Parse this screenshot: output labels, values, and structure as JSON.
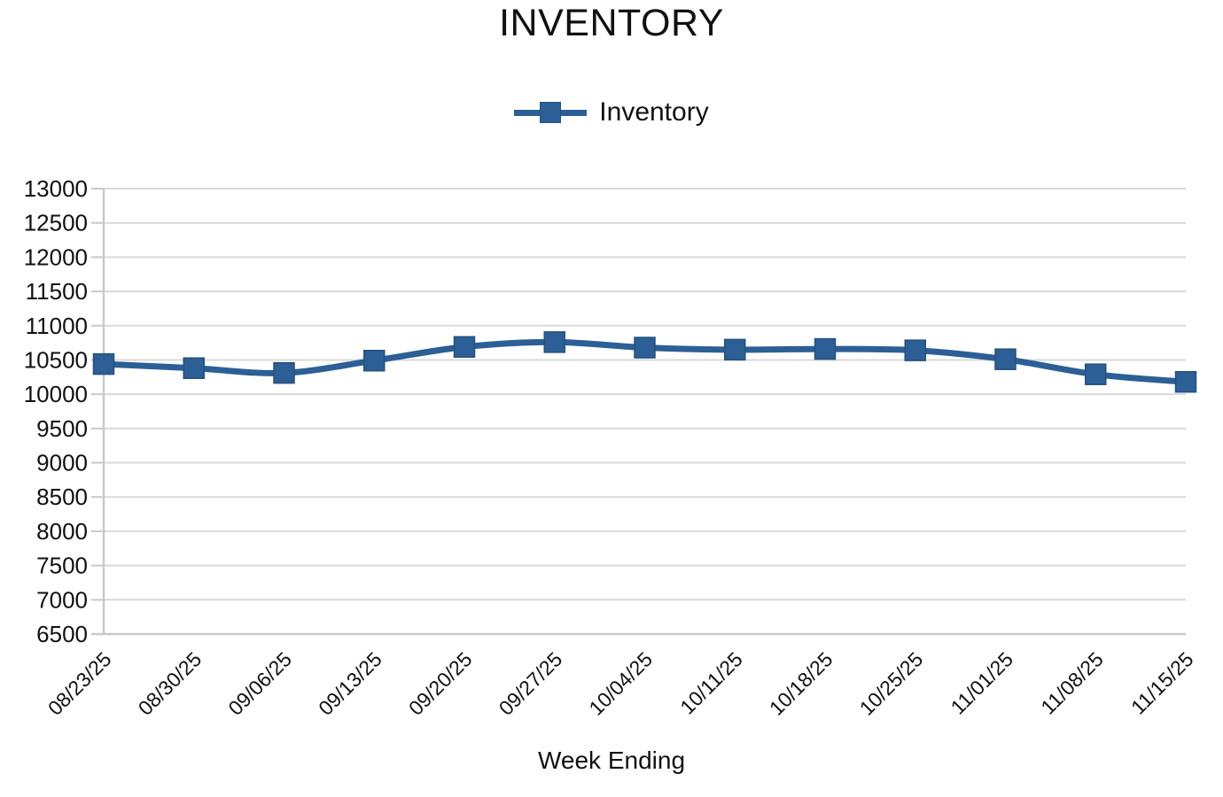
{
  "chart": {
    "title": "INVENTORY",
    "legend_label": "Inventory",
    "xlabel": "Week Ending",
    "colors": {
      "series": "#2c5f95",
      "marker_edge": "#24507f",
      "gridline": "#d9d9d9",
      "axis": "#c9c9c9",
      "text": "#111111"
    }
  },
  "chart_data": {
    "type": "line",
    "title": "INVENTORY",
    "xlabel": "Week Ending",
    "ylabel": "",
    "categories": [
      "08/23/25",
      "08/30/25",
      "09/06/25",
      "09/13/25",
      "09/20/25",
      "09/27/25",
      "10/04/25",
      "10/11/25",
      "10/18/25",
      "10/25/25",
      "11/01/25",
      "11/08/25",
      "11/15/25"
    ],
    "series": [
      {
        "name": "Inventory",
        "values": [
          10440,
          10380,
          10310,
          10490,
          10690,
          10760,
          10680,
          10650,
          10660,
          10640,
          10510,
          10290,
          10180
        ]
      }
    ],
    "ylim": [
      6500,
      13000
    ],
    "ytick_step": 500,
    "grid": "horizontal",
    "legend_position": "top-center",
    "marker": "square",
    "line_smoothing": true
  }
}
